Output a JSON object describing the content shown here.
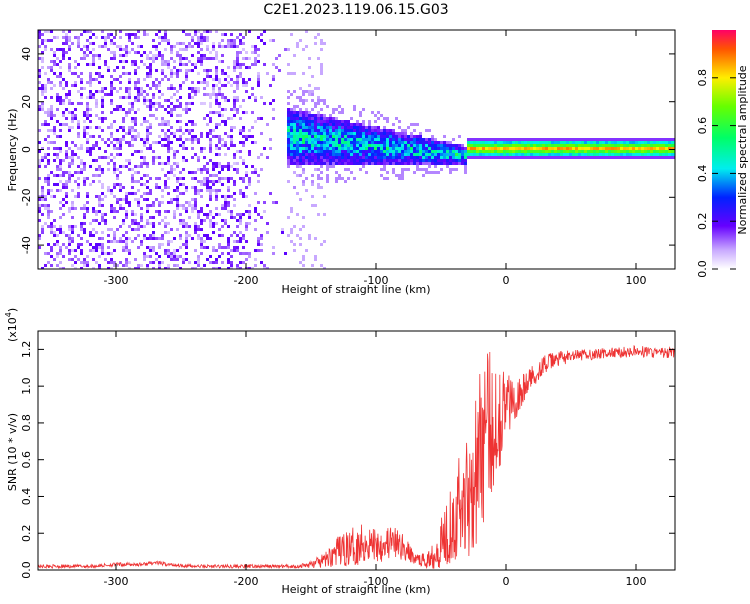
{
  "title": "C2E1.2023.119.06.15.G03",
  "chart_data": [
    {
      "type": "heatmap",
      "xlabel": "Height of straight line (km)",
      "ylabel": "Frequency (Hz)",
      "xlim": [
        -360,
        130
      ],
      "ylim": [
        -50,
        50
      ],
      "xticks": [
        -300,
        -200,
        -100,
        0,
        100
      ],
      "xtick_labels": [
        "-300",
        "-200",
        "-100",
        "0",
        "100"
      ],
      "yticks": [
        -40,
        -20,
        0,
        20,
        40
      ],
      "ytick_labels": [
        "-40",
        "-20",
        "0",
        "20",
        "40"
      ],
      "colorbar": {
        "label": "Normalized spectral amplitude",
        "range": [
          0,
          1
        ],
        "ticks": [
          0.0,
          0.2,
          0.4,
          0.6,
          0.8
        ],
        "tick_labels": [
          "0.0",
          "0.2",
          "0.4",
          "0.6",
          "0.8"
        ]
      },
      "regions": [
        {
          "x": [
            -360,
            -170
          ],
          "freq": [
            -50,
            50
          ],
          "amplitude": [
            0.05,
            0.2
          ]
        },
        {
          "x": [
            -170,
            -30
          ],
          "freq_center_from": 6,
          "freq_center_to": -2,
          "halfwidth_from": 12,
          "halfwidth_to": 4,
          "amplitude": [
            0.15,
            0.45
          ]
        },
        {
          "x": [
            -30,
            130
          ],
          "freq": 1,
          "halfwidth": 3,
          "amplitude": [
            0.4,
            0.9
          ]
        }
      ]
    },
    {
      "type": "line",
      "xlabel": "Height of straight line (km)",
      "ylabel": "SNR (10 * v/v)",
      "y_scale_label": "(x10",
      "y_scale_exp": "4",
      "y_scale_close": ")",
      "xlim": [
        -360,
        130
      ],
      "ylim": [
        0,
        1.3
      ],
      "xticks": [
        -300,
        -200,
        -100,
        0,
        100
      ],
      "xtick_labels": [
        "-300",
        "-200",
        "-100",
        "0",
        "100"
      ],
      "yticks": [
        0.0,
        0.2,
        0.4,
        0.6,
        0.8,
        1.0,
        1.2
      ],
      "ytick_labels": [
        "0.0",
        "0.2",
        "0.4",
        "0.6",
        "0.8",
        "1.0",
        "1.2"
      ],
      "color": "#ee3333",
      "series": [
        {
          "x": [
            -360,
            -340,
            -320,
            -300,
            -280,
            -270,
            -260,
            -240,
            -220,
            -200,
            -180,
            -160,
            -150,
            -140,
            -130,
            -120,
            -110,
            -100,
            -90,
            -80,
            -70,
            -60,
            -50,
            -40,
            -30,
            -25,
            -20,
            -15,
            -10,
            -5,
            0,
            5,
            10,
            15,
            20,
            30,
            40,
            60,
            80,
            100,
            120,
            130
          ],
          "y": [
            0.02,
            0.02,
            0.02,
            0.03,
            0.03,
            0.04,
            0.03,
            0.02,
            0.02,
            0.02,
            0.02,
            0.02,
            0.03,
            0.05,
            0.1,
            0.12,
            0.15,
            0.14,
            0.15,
            0.13,
            0.06,
            0.05,
            0.15,
            0.3,
            0.4,
            0.5,
            0.65,
            0.75,
            0.8,
            0.85,
            0.9,
            0.92,
            0.95,
            1.0,
            1.05,
            1.12,
            1.15,
            1.17,
            1.18,
            1.19,
            1.18,
            1.18
          ],
          "noise": [
            0.01,
            0.01,
            0.01,
            0.01,
            0.01,
            0.01,
            0.01,
            0.01,
            0.01,
            0.01,
            0.01,
            0.01,
            0.02,
            0.04,
            0.08,
            0.1,
            0.12,
            0.1,
            0.1,
            0.08,
            0.03,
            0.04,
            0.15,
            0.25,
            0.35,
            0.4,
            0.45,
            0.45,
            0.4,
            0.3,
            0.2,
            0.12,
            0.1,
            0.08,
            0.06,
            0.05,
            0.04,
            0.03,
            0.03,
            0.03,
            0.03,
            0.03
          ]
        }
      ]
    }
  ]
}
